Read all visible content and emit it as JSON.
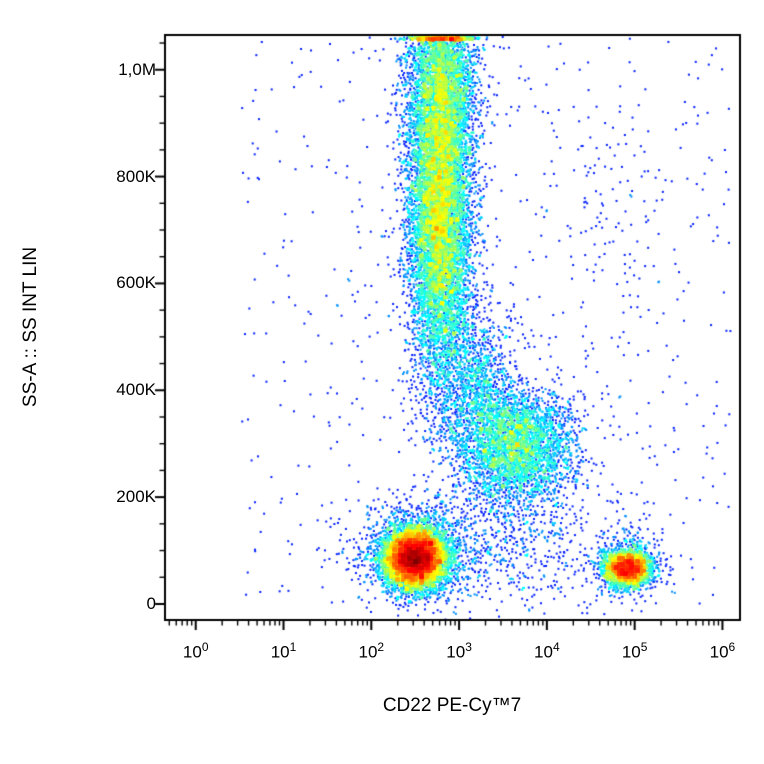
{
  "chart_data": {
    "type": "scatter",
    "subtype": "flow-cytometry-pseudocolor-density-plot",
    "title": "",
    "xlabel": "CD22 PE-Cy™7",
    "ylabel": "SS-A :: SS INT LIN",
    "background_color": "#ffffff",
    "axis_color": "#000000",
    "colormap": "jet",
    "clip_at_top": true,
    "x_axis": {
      "label": "CD22 PE-Cy™7",
      "scale": "log10",
      "tick_exponents": [
        0,
        1,
        2,
        3,
        4,
        5,
        6
      ],
      "range_log10": [
        -0.35,
        6.2
      ]
    },
    "y_axis": {
      "label": "SS-A :: SS INT LIN",
      "scale": "linear",
      "ticks": [
        {
          "value": 0,
          "label": "0"
        },
        {
          "value": 200000,
          "label": "200K"
        },
        {
          "value": 400000,
          "label": "400K"
        },
        {
          "value": 600000,
          "label": "600K"
        },
        {
          "value": 800000,
          "label": "800K"
        },
        {
          "value": 1000000,
          "label": "1,0M"
        }
      ],
      "minor_step": 50000,
      "minor_max": 1050000,
      "range": [
        -30000,
        1065000
      ]
    },
    "populations": [
      {
        "name": "granulocytes-main",
        "type": "gaussian",
        "n": 9000,
        "x_log_mean": 2.78,
        "x_log_sigma": 0.18,
        "y_mean": 740000,
        "y_sigma": 150000
      },
      {
        "name": "granulocytes-upper-offscale",
        "type": "gaussian",
        "n": 3000,
        "x_log_mean": 2.8,
        "x_log_sigma": 0.2,
        "y_mean": 980000,
        "y_sigma": 85000
      },
      {
        "name": "granulocyte-monocyte-bridge",
        "type": "gaussian",
        "n": 1200,
        "x_log_mean": 3.15,
        "x_log_sigma": 0.26,
        "y_mean": 410000,
        "y_sigma": 75000
      },
      {
        "name": "monocytes",
        "type": "gaussian",
        "n": 3500,
        "x_log_mean": 3.65,
        "x_log_sigma": 0.33,
        "y_mean": 295000,
        "y_sigma": 55000
      },
      {
        "name": "lymphocytes-cd22-negative",
        "type": "gaussian",
        "n": 8000,
        "x_log_mean": 2.5,
        "x_log_sigma": 0.17,
        "y_mean": 86000,
        "y_sigma": 27000
      },
      {
        "name": "lymphocytes-halo",
        "type": "gaussian",
        "n": 1200,
        "x_log_mean": 2.5,
        "x_log_sigma": 0.38,
        "y_mean": 95000,
        "y_sigma": 48000
      },
      {
        "name": "b-cells-cd22-positive",
        "type": "gaussian",
        "n": 2600,
        "x_log_mean": 4.92,
        "x_log_sigma": 0.13,
        "y_mean": 66000,
        "y_sigma": 16000
      },
      {
        "name": "b-cells-halo",
        "type": "gaussian",
        "n": 400,
        "x_log_mean": 4.9,
        "x_log_sigma": 0.24,
        "y_mean": 80000,
        "y_sigma": 32000
      },
      {
        "name": "low-ssc-band",
        "type": "gaussian",
        "n": 500,
        "x_log_mean": 3.6,
        "x_log_sigma": 0.55,
        "y_mean": 110000,
        "y_sigma": 55000
      },
      {
        "name": "upper-right-scatter",
        "type": "gaussian",
        "n": 90,
        "x_log_mean": 4.75,
        "x_log_sigma": 0.3,
        "y_mean": 740000,
        "y_sigma": 140000
      },
      {
        "name": "background-debris",
        "type": "uniform",
        "n": 650,
        "x_log_range": [
          0.5,
          6.1
        ],
        "y_range": [
          0,
          1055000
        ]
      }
    ]
  }
}
